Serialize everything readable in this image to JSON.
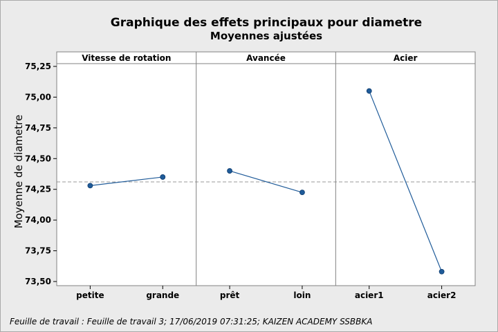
{
  "chart_data": {
    "type": "line",
    "title": "Graphique des effets principaux pour diametre",
    "subtitle": "Moyennes ajustées",
    "ylabel": "Moyenne de diametre",
    "ylim": [
      73.5,
      75.25
    ],
    "yticks": [
      "75,25",
      "75,00",
      "74,75",
      "74,50",
      "74,25",
      "74,00",
      "73,75",
      "73,50"
    ],
    "ytick_values": [
      75.25,
      75.0,
      74.75,
      74.5,
      74.25,
      74.0,
      73.75,
      73.5
    ],
    "reference_line": 74.31,
    "grid": false,
    "line_color": "#1f5b99",
    "reference_color": "#999999",
    "panels": [
      {
        "name": "Vitesse de rotation",
        "categories": [
          "petite",
          "grande"
        ],
        "values": [
          74.28,
          74.35
        ]
      },
      {
        "name": "Avancée",
        "categories": [
          "prêt",
          "loin"
        ],
        "values": [
          74.4,
          74.225
        ]
      },
      {
        "name": "Acier",
        "categories": [
          "acier1",
          "acier2"
        ],
        "values": [
          75.05,
          73.58
        ]
      }
    ]
  },
  "footer": "Feuille de travail : Feuille de travail 3; 17/06/2019 07:31:25; KAIZEN ACADEMY SSBBKA"
}
